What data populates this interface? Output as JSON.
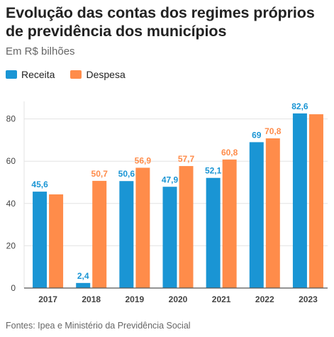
{
  "title": "Evolução das contas dos regimes próprios de previdência dos municípios",
  "subtitle": "Em R$ bilhões",
  "source": "Fontes: Ipea e Ministério da Previdência Social",
  "colors": {
    "receita": "#1a95d4",
    "despesa": "#ff8c4a",
    "grid": "#e3e3e3",
    "axis": "#555555"
  },
  "chart_data": {
    "type": "bar",
    "categories": [
      "2017",
      "2018",
      "2019",
      "2020",
      "2021",
      "2022",
      "2023"
    ],
    "series": [
      {
        "name": "Receita",
        "values": [
          45.6,
          2.4,
          50.6,
          47.9,
          52.1,
          69,
          82.6
        ],
        "labels": [
          "45,6",
          "2,4",
          "50,6",
          "47,9",
          "52,1",
          "69",
          "82,6"
        ]
      },
      {
        "name": "Despesa",
        "values": [
          44.3,
          50.7,
          56.9,
          57.7,
          60.8,
          70.8,
          82.2
        ],
        "labels": [
          "",
          "50,7",
          "56,9",
          "57,7",
          "60,8",
          "70,8",
          ""
        ]
      }
    ],
    "ylim": [
      0,
      90
    ],
    "yticks": [
      0,
      20,
      40,
      60,
      80
    ],
    "grid": true,
    "legend": "top-left"
  }
}
